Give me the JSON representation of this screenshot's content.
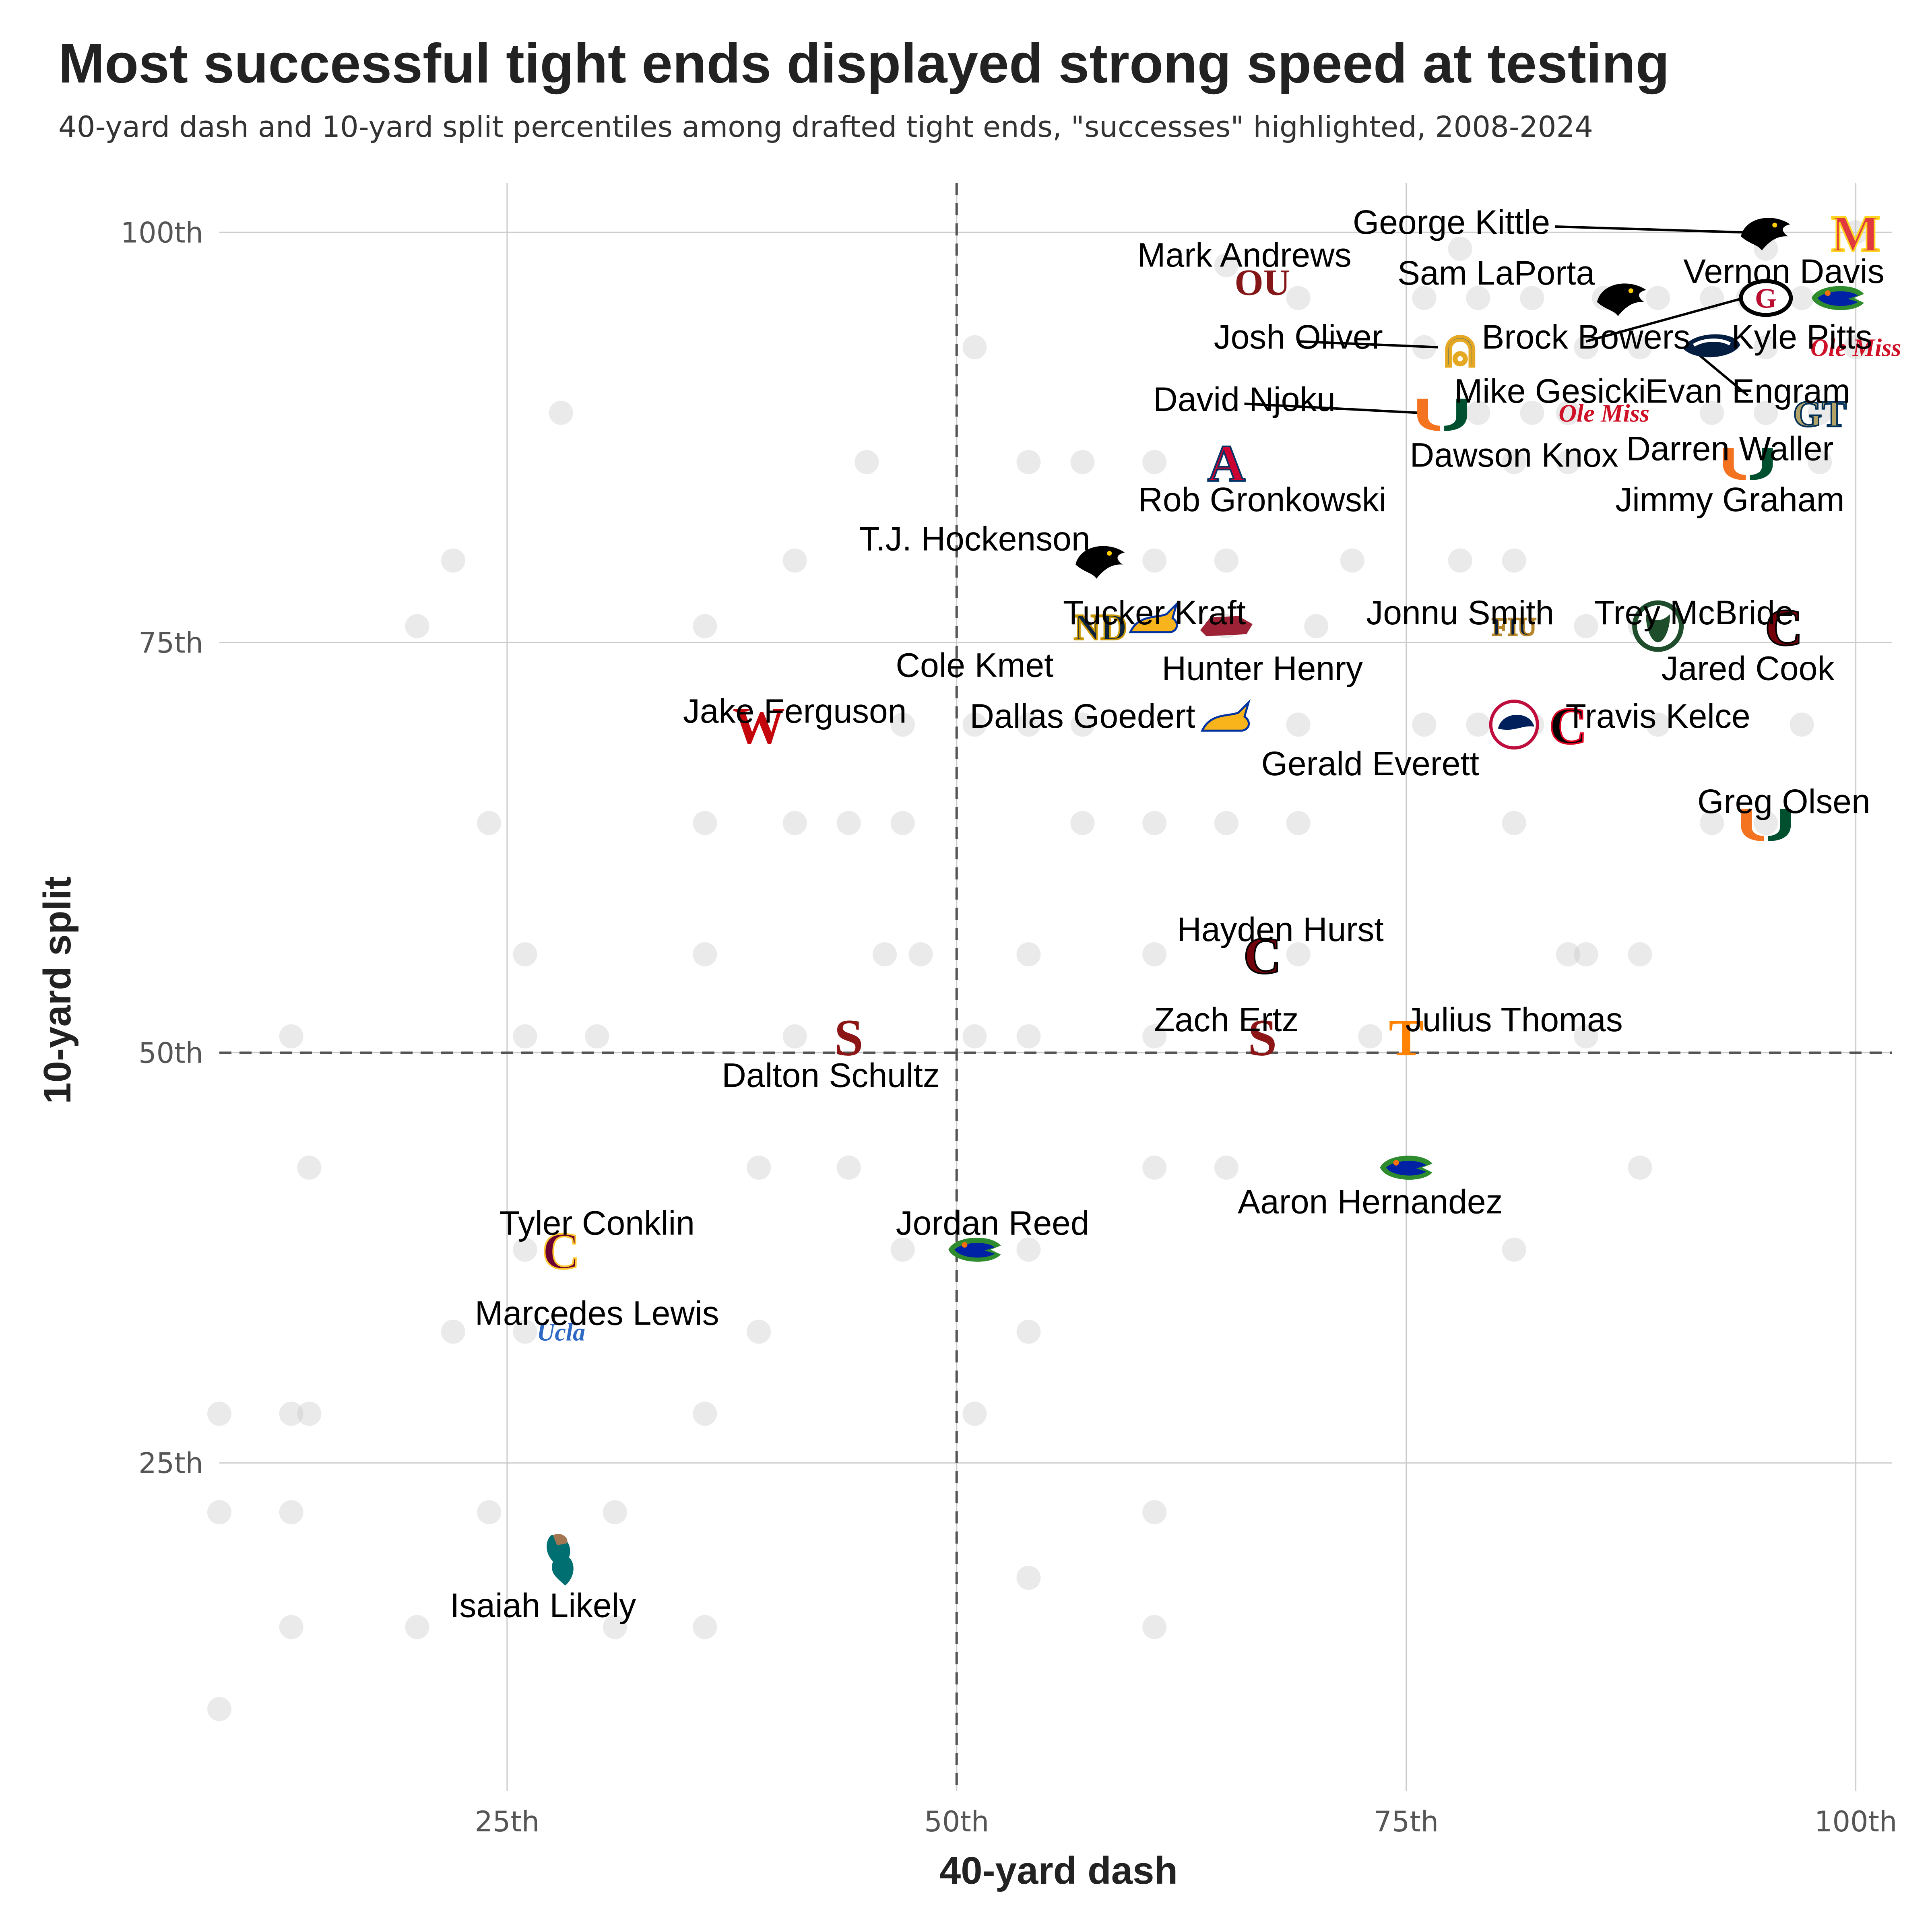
{
  "chart_data": {
    "type": "scatter",
    "title": "Most successful tight ends displayed strong speed at testing",
    "subtitle": "40-yard dash and 10-yard split percentiles among drafted tight ends, \"successes\" highlighted, 2008-2024",
    "xlabel": "40-yard dash",
    "ylabel": "10-yard split",
    "xlim": [
      9,
      102
    ],
    "ylim": [
      5,
      103
    ],
    "x_ticks": [
      25,
      50,
      75,
      100
    ],
    "x_tick_labels": [
      "25th",
      "50th",
      "75th",
      "100th"
    ],
    "y_ticks": [
      25,
      50,
      75,
      100
    ],
    "y_tick_labels": [
      "25th",
      "50th",
      "75th",
      "100th"
    ],
    "reference_lines": {
      "x": 50,
      "y": 50
    },
    "grid": true,
    "background_points": [
      [
        65,
        98
      ],
      [
        76,
        96
      ],
      [
        79,
        96
      ],
      [
        82,
        96
      ],
      [
        86,
        96
      ],
      [
        89,
        96
      ],
      [
        92,
        96
      ],
      [
        94,
        96
      ],
      [
        97,
        96
      ],
      [
        69,
        96
      ],
      [
        78,
        99
      ],
      [
        95,
        99
      ],
      [
        100,
        100
      ],
      [
        51,
        93
      ],
      [
        76,
        93
      ],
      [
        85,
        93
      ],
      [
        88,
        93
      ],
      [
        95,
        93
      ],
      [
        100,
        93
      ],
      [
        28,
        89
      ],
      [
        79,
        89
      ],
      [
        82,
        89
      ],
      [
        92,
        89
      ],
      [
        95,
        89
      ],
      [
        98,
        89
      ],
      [
        84,
        89
      ],
      [
        45,
        86
      ],
      [
        54,
        86
      ],
      [
        57,
        86
      ],
      [
        61,
        86
      ],
      [
        81,
        86
      ],
      [
        84,
        86
      ],
      [
        98,
        86
      ],
      [
        22,
        80
      ],
      [
        41,
        80
      ],
      [
        61,
        80
      ],
      [
        65,
        80
      ],
      [
        72,
        80
      ],
      [
        78,
        80
      ],
      [
        81,
        80
      ],
      [
        20,
        76
      ],
      [
        36,
        76
      ],
      [
        65,
        76
      ],
      [
        70,
        76
      ],
      [
        85,
        76
      ],
      [
        88,
        76
      ],
      [
        47,
        70
      ],
      [
        51,
        70
      ],
      [
        54,
        70
      ],
      [
        57,
        70
      ],
      [
        69,
        70
      ],
      [
        76,
        70
      ],
      [
        79,
        70
      ],
      [
        82,
        70
      ],
      [
        89,
        70
      ],
      [
        97,
        70
      ],
      [
        24,
        64
      ],
      [
        36,
        64
      ],
      [
        41,
        64
      ],
      [
        44,
        64
      ],
      [
        47,
        64
      ],
      [
        57,
        64
      ],
      [
        61,
        64
      ],
      [
        65,
        64
      ],
      [
        69,
        64
      ],
      [
        81,
        64
      ],
      [
        92,
        64
      ],
      [
        95,
        64
      ],
      [
        26,
        56
      ],
      [
        36,
        56
      ],
      [
        46,
        56
      ],
      [
        48,
        56
      ],
      [
        54,
        56
      ],
      [
        61,
        56
      ],
      [
        69,
        56
      ],
      [
        84,
        56
      ],
      [
        85,
        56
      ],
      [
        88,
        56
      ],
      [
        13,
        51
      ],
      [
        26,
        51
      ],
      [
        30,
        51
      ],
      [
        41,
        51
      ],
      [
        51,
        51
      ],
      [
        54,
        51
      ],
      [
        61,
        51
      ],
      [
        73,
        51
      ],
      [
        85,
        51
      ],
      [
        14,
        43
      ],
      [
        39,
        43
      ],
      [
        44,
        43
      ],
      [
        61,
        43
      ],
      [
        65,
        43
      ],
      [
        88,
        43
      ],
      [
        26,
        38
      ],
      [
        47,
        38
      ],
      [
        54,
        38
      ],
      [
        81,
        38
      ],
      [
        22,
        33
      ],
      [
        26,
        33
      ],
      [
        39,
        33
      ],
      [
        54,
        33
      ],
      [
        9,
        28
      ],
      [
        13,
        28
      ],
      [
        14,
        28
      ],
      [
        36,
        28
      ],
      [
        51,
        28
      ],
      [
        9,
        22
      ],
      [
        13,
        22
      ],
      [
        24,
        22
      ],
      [
        31,
        22
      ],
      [
        61,
        22
      ],
      [
        54,
        18
      ],
      [
        13,
        15
      ],
      [
        20,
        15
      ],
      [
        31,
        15
      ],
      [
        36,
        15
      ],
      [
        61,
        15
      ],
      [
        9,
        10
      ]
    ],
    "highlighted": [
      {
        "name": "George Kittle",
        "x": 95,
        "y": 100,
        "logo": "iowa",
        "label_x": 83,
        "label_y": 100.6,
        "anchor": "end",
        "leader": true
      },
      {
        "name": "Mark Andrews",
        "x": 67,
        "y": 97,
        "logo": "oklahoma",
        "label_x": 66,
        "label_y": 98.6,
        "anchor": "middle",
        "leader": false
      },
      {
        "name": "Vernon Davis",
        "x": 100,
        "y": 100,
        "logo": "maryland",
        "label_x": 96,
        "label_y": 97.6,
        "anchor": "middle",
        "leader": false
      },
      {
        "name": "Sam LaPorta",
        "x": 87,
        "y": 96,
        "logo": "iowa",
        "label_x": 80,
        "label_y": 97.5,
        "anchor": "middle",
        "leader": false
      },
      {
        "name": "Brock Bowers",
        "x": 95,
        "y": 96,
        "logo": "georgia",
        "label_x": 85,
        "label_y": 93.6,
        "anchor": "middle",
        "leader": true
      },
      {
        "name": "Kyle Pitts",
        "x": 99,
        "y": 96,
        "logo": "florida",
        "label_x": 97,
        "label_y": 93.6,
        "anchor": "middle",
        "leader": false
      },
      {
        "name": "Josh Oliver",
        "x": 78,
        "y": 93,
        "logo": "sjsu",
        "label_x": 69,
        "label_y": 93.6,
        "anchor": "middle",
        "leader": true
      },
      {
        "name": "Evan Engram",
        "x": 92,
        "y": 93,
        "logo": "pennstate",
        "label_x": 94,
        "label_y": 90.3,
        "anchor": "middle",
        "leader": true
      },
      {
        "name": "Mike Gesicki",
        "x": 100,
        "y": 93,
        "logo": "olemiss",
        "label_x": 83,
        "label_y": 90.3,
        "anchor": "middle",
        "leader": false
      },
      {
        "name": "David Njoku",
        "x": 77,
        "y": 89,
        "logo": "miami",
        "label_x": 66,
        "label_y": 89.8,
        "anchor": "middle",
        "leader": true
      },
      {
        "name": "Dawson Knox",
        "x": 86,
        "y": 89,
        "logo": "olemiss",
        "label_x": 81,
        "label_y": 86.4,
        "anchor": "middle",
        "leader": false
      },
      {
        "name": "Darren Waller",
        "x": 98,
        "y": 89,
        "logo": "gatech",
        "label_x": 93,
        "label_y": 86.8,
        "anchor": "middle",
        "leader": false
      },
      {
        "name": "Rob Gronkowski",
        "x": 65,
        "y": 86,
        "logo": "arizona",
        "label_x": 67,
        "label_y": 83.7,
        "anchor": "middle",
        "leader": false
      },
      {
        "name": "Jimmy Graham",
        "x": 94,
        "y": 86,
        "logo": "miami",
        "label_x": 93,
        "label_y": 83.7,
        "anchor": "middle",
        "leader": false
      },
      {
        "name": "T.J. Hockenson",
        "x": 58,
        "y": 80,
        "logo": "iowa",
        "label_x": 51,
        "label_y": 81.3,
        "anchor": "middle",
        "leader": false
      },
      {
        "name": "Tucker Kraft",
        "x": 61,
        "y": 76,
        "logo": "sdsu",
        "label_x": 61,
        "label_y": 76.8,
        "anchor": "middle",
        "leader": false
      },
      {
        "name": "Cole Kmet",
        "x": 58,
        "y": 76,
        "logo": "notredame",
        "label_x": 51,
        "label_y": 73.6,
        "anchor": "middle",
        "leader": false
      },
      {
        "name": "Hunter Henry",
        "x": 65,
        "y": 76,
        "logo": "arkansas",
        "label_x": 67,
        "label_y": 73.4,
        "anchor": "middle",
        "leader": false
      },
      {
        "name": "Jonnu Smith",
        "x": 81,
        "y": 76,
        "logo": "fiu",
        "label_x": 78,
        "label_y": 76.8,
        "anchor": "middle",
        "leader": false
      },
      {
        "name": "Trey McBride",
        "x": 89,
        "y": 76,
        "logo": "csu",
        "label_x": 91,
        "label_y": 76.8,
        "anchor": "middle",
        "leader": false
      },
      {
        "name": "Jared Cook",
        "x": 96,
        "y": 76,
        "logo": "southcarolina",
        "label_x": 94,
        "label_y": 73.4,
        "anchor": "middle",
        "leader": false
      },
      {
        "name": "Jake Ferguson",
        "x": 39,
        "y": 70,
        "logo": "wisconsin",
        "label_x": 41,
        "label_y": 70.8,
        "anchor": "middle",
        "leader": false
      },
      {
        "name": "Dallas Goedert",
        "x": 65,
        "y": 70,
        "logo": "sdsu",
        "label_x": 57,
        "label_y": 70.5,
        "anchor": "middle",
        "leader": false
      },
      {
        "name": "Gerald Everett",
        "x": 81,
        "y": 70,
        "logo": "southalabama",
        "label_x": 73,
        "label_y": 67.6,
        "anchor": "middle",
        "leader": false
      },
      {
        "name": "Travis Kelce",
        "x": 84,
        "y": 70,
        "logo": "cincinnati",
        "label_x": 89,
        "label_y": 70.5,
        "anchor": "middle",
        "leader": false
      },
      {
        "name": "Greg Olsen",
        "x": 95,
        "y": 64,
        "logo": "miami",
        "label_x": 96,
        "label_y": 65.3,
        "anchor": "middle",
        "leader": false
      },
      {
        "name": "Hayden Hurst",
        "x": 67,
        "y": 56,
        "logo": "southcarolina",
        "label_x": 68,
        "label_y": 57.5,
        "anchor": "middle",
        "leader": false
      },
      {
        "name": "Zach Ertz",
        "x": 67,
        "y": 51,
        "logo": "stanford",
        "label_x": 65,
        "label_y": 52.0,
        "anchor": "middle",
        "leader": false
      },
      {
        "name": "Julius Thomas",
        "x": 75,
        "y": 51,
        "logo": "tennessee",
        "label_x": 81,
        "label_y": 52.0,
        "anchor": "middle",
        "leader": false
      },
      {
        "name": "Dalton Schultz",
        "x": 44,
        "y": 51,
        "logo": "stanford",
        "label_x": 43,
        "label_y": 48.6,
        "anchor": "middle",
        "leader": false
      },
      {
        "name": "Aaron Hernandez",
        "x": 75,
        "y": 43,
        "logo": "florida",
        "label_x": 73,
        "label_y": 40.9,
        "anchor": "middle",
        "leader": false
      },
      {
        "name": "Tyler Conklin",
        "x": 28,
        "y": 38,
        "logo": "cmu",
        "label_x": 30,
        "label_y": 39.6,
        "anchor": "middle",
        "leader": false
      },
      {
        "name": "Jordan Reed",
        "x": 51,
        "y": 38,
        "logo": "florida",
        "label_x": 52,
        "label_y": 39.6,
        "anchor": "middle",
        "leader": false
      },
      {
        "name": "Marcedes Lewis",
        "x": 28,
        "y": 33,
        "logo": "ucla",
        "label_x": 30,
        "label_y": 34.1,
        "anchor": "middle",
        "leader": false
      },
      {
        "name": "Isaiah Likely",
        "x": 28,
        "y": 19,
        "logo": "coastal",
        "label_x": 27,
        "label_y": 16.3,
        "anchor": "middle",
        "leader": false
      }
    ]
  },
  "logos": {
    "iowa": {
      "shape": "hawk",
      "color": "#000000",
      "accent": "#FFCD00"
    },
    "oklahoma": {
      "shape": "glyph",
      "text": "OU",
      "color": "#841617"
    },
    "maryland": {
      "shape": "glyph",
      "text": "M",
      "color": "#E03A3E",
      "accent": "#FFD520"
    },
    "georgia": {
      "shape": "ring",
      "text": "G",
      "color": "#BA0C2F",
      "accent": "#000000"
    },
    "florida": {
      "shape": "gator",
      "color": "#0021A5",
      "accent": "#2E8B2E"
    },
    "sjsu": {
      "shape": "glyph",
      "text": "⍝",
      "color": "#0055A2",
      "accent": "#E5A823"
    },
    "pennstate": {
      "shape": "lion",
      "color": "#041E42"
    },
    "olemiss": {
      "shape": "script",
      "text": "Ole Miss",
      "color": "#CE1126"
    },
    "miami": {
      "shape": "u",
      "color": "#F47321",
      "accent": "#005030"
    },
    "gatech": {
      "shape": "glyph",
      "text": "GT",
      "color": "#B3A369",
      "accent": "#003057"
    },
    "arizona": {
      "shape": "glyph",
      "text": "A",
      "color": "#CC0033",
      "accent": "#003366"
    },
    "sdsu": {
      "shape": "rabbit",
      "color": "#F9B31B",
      "accent": "#0033A0"
    },
    "notredame": {
      "shape": "glyph",
      "text": "ND",
      "color": "#0C2340",
      "accent": "#C99700"
    },
    "arkansas": {
      "shape": "hog",
      "color": "#9D2235"
    },
    "fiu": {
      "shape": "glyph",
      "text": "FIU",
      "color": "#081E3F",
      "accent": "#B6862C"
    },
    "csu": {
      "shape": "ram",
      "color": "#1E4D2B"
    },
    "southcarolina": {
      "shape": "glyph",
      "text": "C",
      "color": "#73000A",
      "accent": "#000000"
    },
    "wisconsin": {
      "shape": "glyph",
      "text": "W",
      "color": "#C5050C"
    },
    "southalabama": {
      "shape": "jag",
      "color": "#00205B",
      "accent": "#BF0D3E"
    },
    "cincinnati": {
      "shape": "glyph",
      "text": "C",
      "color": "#000000",
      "accent": "#E00122"
    },
    "stanford": {
      "shape": "glyph",
      "text": "S",
      "color": "#8C1515"
    },
    "tennessee": {
      "shape": "glyph",
      "text": "T",
      "color": "#FF8200"
    },
    "cmu": {
      "shape": "glyph",
      "text": "C",
      "color": "#6A0032",
      "accent": "#FFC82E"
    },
    "ucla": {
      "shape": "script",
      "text": "Ucla",
      "color": "#2D68C4"
    },
    "coastal": {
      "shape": "chant",
      "color": "#006F71",
      "accent": "#A27752"
    }
  }
}
